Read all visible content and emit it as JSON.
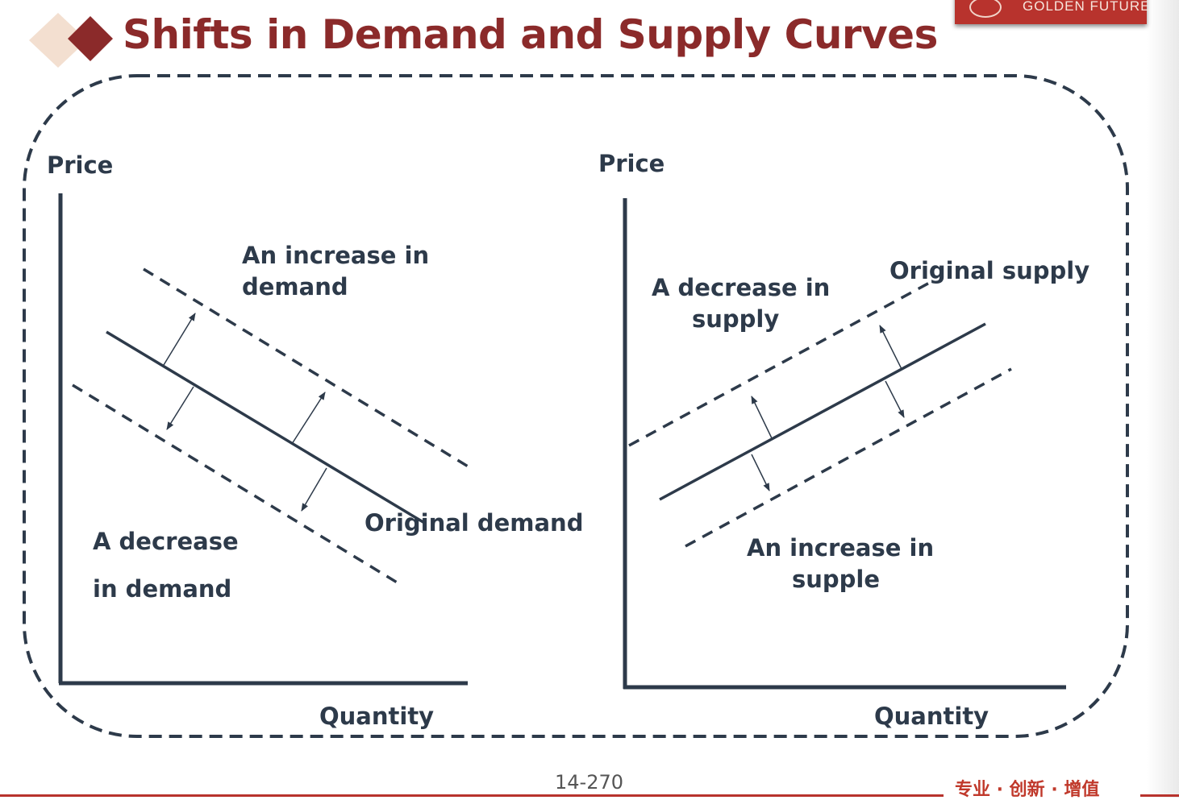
{
  "slide": {
    "title": "Shifts in Demand and Supply Curves",
    "logo_text": "GOLDEN FUTURE",
    "page_number": "14-270",
    "slogan": "专业 · 创新 · 增值",
    "colors": {
      "title": "#8b2a2a",
      "curves": "#2d3a4a",
      "logo_bg": "#b8332d"
    }
  },
  "demand_panel": {
    "y_axis_label": "Price",
    "x_axis_label": "Quantity",
    "increase_label": [
      "An increase in",
      "demand"
    ],
    "decrease_label": [
      "A decrease",
      "in demand"
    ],
    "original_label": "Original demand"
  },
  "supply_panel": {
    "y_axis_label": "Price",
    "x_axis_label": "Quantity",
    "decrease_label": [
      "A decrease in",
      "supply"
    ],
    "original_label": "Original supply",
    "increase_label": [
      "An increase in",
      "supple"
    ]
  }
}
